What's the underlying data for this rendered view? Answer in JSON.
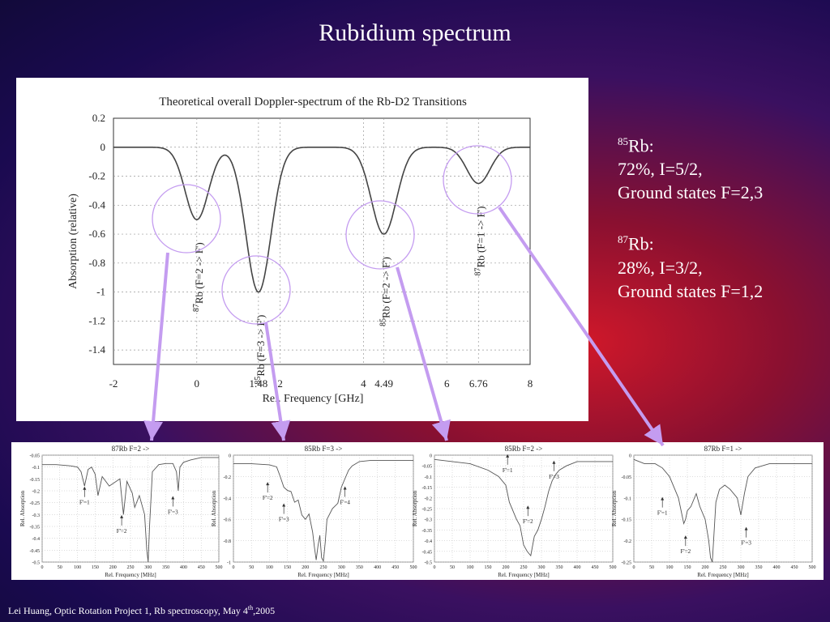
{
  "slide": {
    "title": "Rubidium spectrum",
    "footer_pre": "Lei Huang, Optic Rotation Project 1, Rb spectroscopy, May 4",
    "footer_sup": "th",
    "footer_post": ",2005"
  },
  "info": {
    "rb85_mass": "85",
    "rb85_label": "Rb:",
    "rb85_line1": "72%, I=5/2,",
    "rb85_line2": "Ground states F=2,3",
    "rb87_mass": "87",
    "rb87_label": "Rb:",
    "rb87_line1": "28%, I=3/2,",
    "rb87_line2": "Ground states F=1,2"
  },
  "colors": {
    "arrow": "#c49cf0",
    "circle": "#c49cf0"
  },
  "chart_data": [
    {
      "type": "line",
      "title": "Theoretical overall Doppler-spectrum of the Rb-D2 Transitions",
      "xlabel": "Rel. Frequency [GHz]",
      "ylabel": "Absorption (relative)",
      "xlim": [
        -2,
        8
      ],
      "ylim": [
        -1.5,
        0.2
      ],
      "xticks": [
        -2,
        0,
        1.48,
        2,
        4,
        4.49,
        6,
        6.76,
        8
      ],
      "xtick_labels": [
        "-2",
        "0",
        "1.48",
        "2",
        "4",
        "4.49",
        "6",
        "6.76",
        "8"
      ],
      "yticks": [
        0.2,
        0,
        -0.2,
        -0.4,
        -0.6,
        -0.8,
        -1,
        -1.2,
        -1.4
      ],
      "ytick_labels": [
        "0.2",
        "0",
        "-0.2",
        "-0.4",
        "-0.6",
        "-0.8",
        "-1",
        "-1.2",
        "-1.4"
      ],
      "grid": true,
      "dips": [
        {
          "x": 0,
          "depth": -0.5,
          "width": 0.28,
          "iso": "87",
          "label": "Rb (F=2 -> F')"
        },
        {
          "x": 1.48,
          "depth": -1.0,
          "width": 0.3,
          "iso": "85",
          "label": "Rb (F=3 -> F')"
        },
        {
          "x": 4.49,
          "depth": -0.6,
          "width": 0.3,
          "iso": "85",
          "label": "Rb (F=2 -> F')"
        },
        {
          "x": 6.76,
          "depth": -0.25,
          "width": 0.28,
          "iso": "87",
          "label": "Rb (F=1 -> F')"
        }
      ]
    },
    {
      "type": "line",
      "title": "87Rb F=2 ->",
      "xlabel": "Rel. Frequency [MHz]",
      "ylabel": "Rel. Absorption",
      "xlim": [
        0,
        500
      ],
      "ylim": [
        -0.5,
        -0.05
      ],
      "xticks": [
        0,
        50,
        100,
        150,
        200,
        250,
        300,
        350,
        400,
        450,
        500
      ],
      "yticks": [
        -0.05,
        -0.1,
        -0.15,
        -0.2,
        -0.25,
        -0.3,
        -0.35,
        -0.4,
        -0.45,
        -0.5
      ],
      "ytick_labels": [
        "-0.05",
        "-0.1",
        "-0.15",
        "-0.2",
        "-0.25",
        "-0.3",
        "-0.35",
        "-0.4",
        "-0.45",
        "-0.5"
      ],
      "baseline": -0.08,
      "x": [
        0,
        40,
        80,
        100,
        110,
        120,
        130,
        140,
        150,
        158,
        170,
        190,
        220,
        230,
        240,
        255,
        262,
        275,
        290,
        296,
        300,
        304,
        312,
        330,
        350,
        370,
        380,
        385,
        390,
        400,
        420,
        450,
        480,
        500
      ],
      "y": [
        -0.09,
        -0.09,
        -0.095,
        -0.1,
        -0.12,
        -0.18,
        -0.11,
        -0.1,
        -0.13,
        -0.22,
        -0.14,
        -0.18,
        -0.15,
        -0.3,
        -0.16,
        -0.21,
        -0.27,
        -0.22,
        -0.3,
        -0.45,
        -0.52,
        -0.35,
        -0.12,
        -0.09,
        -0.085,
        -0.085,
        -0.12,
        -0.2,
        -0.1,
        -0.08,
        -0.07,
        -0.06,
        -0.06,
        -0.06
      ],
      "annotations": [
        {
          "text": "F'=1",
          "x": 120,
          "y": -0.24
        },
        {
          "text": "F'=2",
          "x": 225,
          "y": -0.36
        },
        {
          "text": "F'=3",
          "x": 370,
          "y": -0.28
        }
      ]
    },
    {
      "type": "line",
      "title": "85Rb F=3 ->",
      "xlabel": "Rel. Frequency [MHz]",
      "ylabel": "Rel. Absorption",
      "xlim": [
        0,
        500
      ],
      "ylim": [
        -1,
        0
      ],
      "xticks": [
        0,
        50,
        100,
        150,
        200,
        250,
        300,
        350,
        400,
        450,
        500
      ],
      "yticks": [
        0,
        -0.2,
        -0.4,
        -0.6,
        -0.8,
        -1
      ],
      "ytick_labels": [
        "0",
        "-0.2",
        "-0.4",
        "-0.6",
        "-0.8",
        "-1"
      ],
      "x": [
        0,
        50,
        100,
        120,
        130,
        140,
        150,
        160,
        170,
        180,
        190,
        200,
        210,
        220,
        225,
        230,
        235,
        240,
        245,
        250,
        255,
        260,
        275,
        290,
        300,
        310,
        320,
        330,
        350,
        380,
        420,
        460,
        500
      ],
      "y": [
        -0.08,
        -0.08,
        -0.09,
        -0.11,
        -0.2,
        -0.3,
        -0.33,
        -0.34,
        -0.44,
        -0.42,
        -0.56,
        -0.6,
        -0.55,
        -0.72,
        -0.86,
        -0.98,
        -0.85,
        -0.75,
        -0.96,
        -0.99,
        -0.82,
        -0.6,
        -0.5,
        -0.45,
        -0.3,
        -0.22,
        -0.14,
        -0.1,
        -0.06,
        -0.05,
        -0.05,
        -0.05,
        -0.05
      ],
      "annotations": [
        {
          "text": "F'=2",
          "x": 95,
          "y": -0.38
        },
        {
          "text": "F'=3",
          "x": 140,
          "y": -0.58
        },
        {
          "text": "F'=4",
          "x": 310,
          "y": -0.42
        }
      ]
    },
    {
      "type": "line",
      "title": "85Rb F=2 ->",
      "xlabel": "Rel. Frequency [MHz]",
      "ylabel": "Rel. Absorption",
      "xlim": [
        0,
        500
      ],
      "ylim": [
        -0.5,
        0
      ],
      "xticks": [
        0,
        50,
        100,
        150,
        200,
        250,
        300,
        350,
        400,
        450,
        500
      ],
      "yticks": [
        0,
        -0.05,
        -0.1,
        -0.15,
        -0.2,
        -0.25,
        -0.3,
        -0.35,
        -0.4,
        -0.45,
        -0.5
      ],
      "ytick_labels": [
        "0",
        "-0.05",
        "-0.1",
        "-0.15",
        "-0.2",
        "-0.25",
        "-0.3",
        "-0.35",
        "-0.4",
        "-0.45",
        "-0.5"
      ],
      "x": [
        0,
        50,
        100,
        150,
        180,
        200,
        210,
        220,
        230,
        240,
        250,
        260,
        270,
        280,
        290,
        300,
        310,
        320,
        330,
        340,
        350,
        370,
        400,
        450,
        500
      ],
      "y": [
        -0.02,
        -0.03,
        -0.04,
        -0.07,
        -0.1,
        -0.14,
        -0.22,
        -0.26,
        -0.3,
        -0.33,
        -0.42,
        -0.45,
        -0.47,
        -0.38,
        -0.35,
        -0.3,
        -0.24,
        -0.17,
        -0.12,
        -0.09,
        -0.07,
        -0.05,
        -0.03,
        -0.03,
        -0.03
      ],
      "annotations": [
        {
          "text": "F'=1",
          "x": 205,
          "y": -0.06
        },
        {
          "text": "F'=2",
          "x": 262,
          "y": -0.3
        },
        {
          "text": "F'=3",
          "x": 335,
          "y": -0.09
        }
      ]
    },
    {
      "type": "line",
      "title": "87Rb F=1 ->",
      "xlabel": "Rel. Frequency [MHz]",
      "ylabel": "Rel. Absorption",
      "xlim": [
        0,
        500
      ],
      "ylim": [
        -0.25,
        0
      ],
      "xticks": [
        0,
        50,
        100,
        150,
        200,
        250,
        300,
        350,
        400,
        450,
        500
      ],
      "yticks": [
        0,
        -0.05,
        -0.1,
        -0.15,
        -0.2,
        -0.25
      ],
      "ytick_labels": [
        "0",
        "-0.05",
        "-0.1",
        "-0.15",
        "-0.2",
        "-0.25"
      ],
      "x": [
        0,
        30,
        60,
        80,
        100,
        115,
        125,
        135,
        140,
        145,
        150,
        160,
        175,
        185,
        200,
        210,
        215,
        220,
        225,
        230,
        240,
        255,
        270,
        290,
        300,
        310,
        320,
        340,
        380,
        420,
        460,
        500
      ],
      "y": [
        -0.01,
        -0.02,
        -0.02,
        -0.03,
        -0.05,
        -0.08,
        -0.1,
        -0.14,
        -0.16,
        -0.15,
        -0.13,
        -0.12,
        -0.09,
        -0.12,
        -0.15,
        -0.2,
        -0.24,
        -0.26,
        -0.18,
        -0.11,
        -0.08,
        -0.07,
        -0.08,
        -0.1,
        -0.14,
        -0.09,
        -0.05,
        -0.03,
        -0.02,
        -0.02,
        -0.02,
        -0.02
      ],
      "annotations": [
        {
          "text": "F'=1",
          "x": 80,
          "y": -0.13
        },
        {
          "text": "F'=2",
          "x": 145,
          "y": -0.22
        },
        {
          "text": "F'=3",
          "x": 315,
          "y": -0.2
        }
      ]
    }
  ]
}
